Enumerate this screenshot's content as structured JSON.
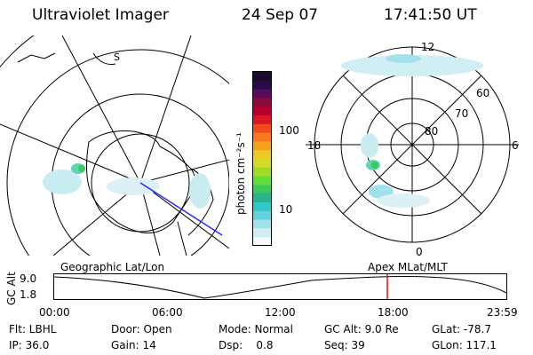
{
  "header": {
    "title": "Ultraviolet Imager",
    "date": "24 Sep 07",
    "time": "17:41:50 UT"
  },
  "colorbar": {
    "unit_label": "photon cm⁻²s⁻¹",
    "ticks": [
      "100",
      "10"
    ],
    "colors": [
      "#1a0a2e",
      "#2a0a4a",
      "#5a0a5a",
      "#8a0a3a",
      "#b4002a",
      "#dc1428",
      "#f04a1e",
      "#f5781e",
      "#f5a01e",
      "#f0c828",
      "#d2dc28",
      "#a0dc28",
      "#64dc3c",
      "#3cc85a",
      "#2ab48c",
      "#32c8c8",
      "#64d2dc",
      "#a0e1ec",
      "#d2eef5",
      "#f5fafc"
    ]
  },
  "polar_plot": {
    "labels": {
      "top": "12",
      "left": "18",
      "right": "6",
      "bottom": "0"
    },
    "lat_labels": [
      "60",
      "70",
      "80"
    ]
  },
  "timeline": {
    "left_title": "Geographic Lat/Lon",
    "right_title": "Apex MLat/MLT",
    "y_axis_label": "GC Alt",
    "y_ticks": [
      "9.0",
      "1.8"
    ],
    "x_ticks": [
      "00:00",
      "06:00",
      "12:00",
      "18:00",
      "23:59"
    ]
  },
  "status": {
    "row1": [
      {
        "key": "flt",
        "text": "Flt: LBHL"
      },
      {
        "key": "door",
        "text": "Door: Open"
      },
      {
        "key": "mode",
        "text": "Mode: Normal"
      },
      {
        "key": "gcalt",
        "text": "GC Alt: 9.0 Re"
      },
      {
        "key": "glat",
        "text": "GLat: -78.7"
      }
    ],
    "row2": [
      {
        "key": "ip",
        "text": "IP: 36.0"
      },
      {
        "key": "gain",
        "text": "Gain: 14"
      },
      {
        "key": "dsp",
        "text": "Dsp:    0.8"
      },
      {
        "key": "seq",
        "text": "Seq: 39"
      },
      {
        "key": "glon",
        "text": "GLon: 117.1"
      }
    ]
  }
}
